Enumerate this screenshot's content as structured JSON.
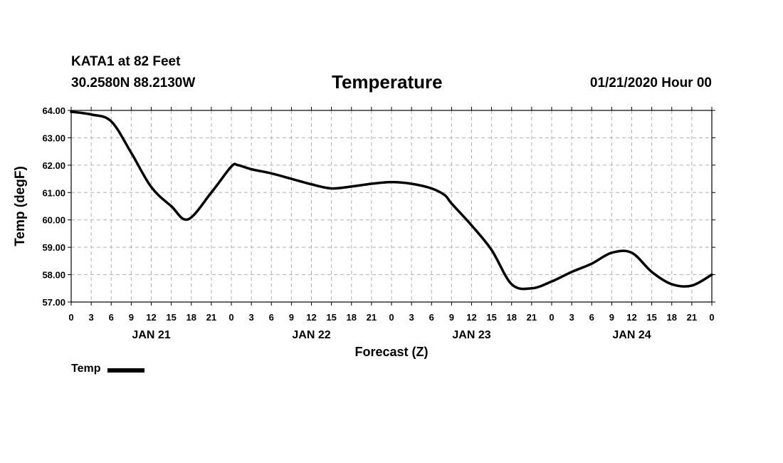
{
  "header": {
    "station": "KATA1 at 82 Feet",
    "coords": "30.2580N 88.2130W",
    "title": "Temperature",
    "date": "01/21/2020 Hour 00"
  },
  "chart_data": {
    "type": "line",
    "title": "Temperature",
    "xlabel": "Forecast (Z)",
    "ylabel": "Temp (degF)",
    "ylim": [
      57.0,
      64.0
    ],
    "xlim_hours": [
      0,
      96
    ],
    "y_ticks": [
      57,
      58,
      59,
      60,
      61,
      62,
      63,
      64
    ],
    "y_tick_labels": [
      "57.00",
      "58.00",
      "59.00",
      "60.00",
      "61.00",
      "62.00",
      "63.00",
      "64.00"
    ],
    "x_tick_hours": [
      0,
      3,
      6,
      9,
      12,
      15,
      18,
      21,
      24,
      27,
      30,
      33,
      36,
      39,
      42,
      45,
      48,
      51,
      54,
      57,
      60,
      63,
      66,
      69,
      72,
      75,
      78,
      81,
      84,
      87,
      90,
      93,
      96
    ],
    "x_tick_labels": [
      "0",
      "3",
      "6",
      "9",
      "12",
      "15",
      "18",
      "21",
      "0",
      "3",
      "6",
      "9",
      "12",
      "15",
      "18",
      "21",
      "0",
      "3",
      "6",
      "9",
      "12",
      "15",
      "18",
      "21",
      "0",
      "3",
      "6",
      "9",
      "12",
      "15",
      "18",
      "21",
      "0"
    ],
    "day_labels": [
      {
        "label": "JAN 21",
        "hour": 12
      },
      {
        "label": "JAN 22",
        "hour": 36
      },
      {
        "label": "JAN 23",
        "hour": 60
      },
      {
        "label": "JAN 24",
        "hour": 84
      }
    ],
    "grid": true,
    "series": [
      {
        "name": "Temp",
        "color": "#000000",
        "x": [
          0,
          3,
          6,
          9,
          12,
          15,
          17.5,
          21,
          24,
          25,
          27,
          30,
          33,
          36,
          39,
          42,
          45,
          48,
          51,
          54,
          56,
          57,
          60,
          63,
          66,
          69,
          72,
          75,
          78,
          81,
          84,
          87,
          90,
          93,
          96
        ],
        "values": [
          63.95,
          63.85,
          63.6,
          62.45,
          61.2,
          60.5,
          60.02,
          61.0,
          61.95,
          62.0,
          61.85,
          61.7,
          61.5,
          61.3,
          61.15,
          61.22,
          61.32,
          61.38,
          61.32,
          61.15,
          60.9,
          60.6,
          59.8,
          58.9,
          57.65,
          57.5,
          57.75,
          58.1,
          58.4,
          58.8,
          58.8,
          58.1,
          57.65,
          57.6,
          58.0
        ]
      }
    ]
  },
  "legend": {
    "label": "Temp"
  }
}
